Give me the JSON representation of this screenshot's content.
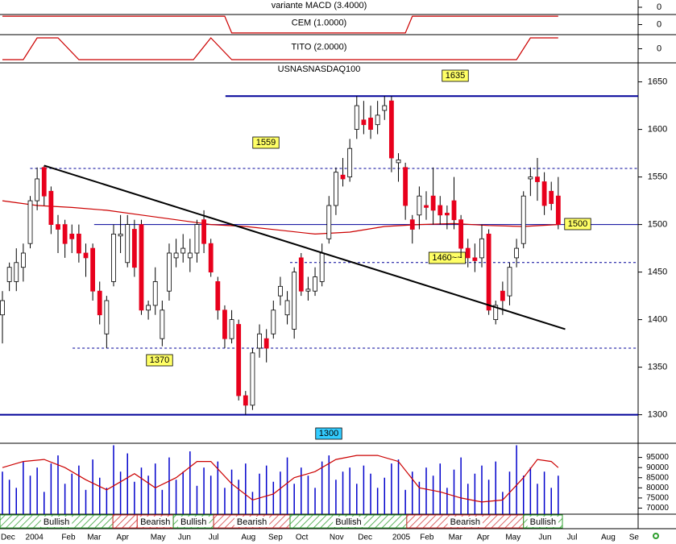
{
  "indicators": [
    {
      "label": "variante MACD (3.4000)",
      "yticks": [
        0
      ]
    },
    {
      "label": "CEM (1.0000)",
      "yticks": [
        0
      ],
      "ylim": [
        -1.2,
        1.2
      ],
      "x": [
        0,
        32,
        33,
        58,
        59,
        80
      ],
      "values": [
        1,
        1,
        -1,
        -1,
        1,
        1
      ],
      "color": "#cc0000"
    },
    {
      "label": "TITO (2.0000)",
      "yticks": [
        0
      ],
      "ylim": [
        -1.3,
        1.3
      ],
      "x": [
        0,
        3,
        5,
        8,
        11,
        27.5,
        30,
        33,
        74,
        76,
        80
      ],
      "values": [
        -1,
        -1,
        1,
        1,
        -1,
        -1,
        1,
        -1,
        -1,
        1,
        1
      ],
      "color": "#cc0000"
    }
  ],
  "chart_data": {
    "type": "candlestick",
    "title": "USNASNASDAQ100",
    "xlim": [
      -0.35,
      91.5
    ],
    "ylim": [
      1270,
      1670
    ],
    "yticks": [
      1300,
      1350,
      1400,
      1450,
      1500,
      1550,
      1600,
      1650
    ],
    "xticks": [
      {
        "value": 0.8,
        "label": "Dec"
      },
      {
        "value": 4.6,
        "label": "2004"
      },
      {
        "value": 9.5,
        "label": "Feb"
      },
      {
        "value": 13.2,
        "label": "Mar"
      },
      {
        "value": 17.3,
        "label": "Apr"
      },
      {
        "value": 22.4,
        "label": "May"
      },
      {
        "value": 26.2,
        "label": "Jun"
      },
      {
        "value": 30.4,
        "label": "Jul"
      },
      {
        "value": 35.4,
        "label": "Aug"
      },
      {
        "value": 39.3,
        "label": "Sep"
      },
      {
        "value": 43.1,
        "label": "Oct"
      },
      {
        "value": 48.1,
        "label": "Nov"
      },
      {
        "value": 52.2,
        "label": "Dec"
      },
      {
        "value": 57.4,
        "label": "2005"
      },
      {
        "value": 61.1,
        "label": "Feb"
      },
      {
        "value": 65.2,
        "label": "Mar"
      },
      {
        "value": 69.2,
        "label": "Apr"
      },
      {
        "value": 73.5,
        "label": "May"
      },
      {
        "value": 78.1,
        "label": "Jun"
      },
      {
        "value": 82,
        "label": "Jul"
      },
      {
        "value": 87.2,
        "label": "Aug"
      },
      {
        "value": 90.9,
        "label": "Se"
      }
    ],
    "up_color": "#ffffff",
    "down_color": "#e8001c",
    "open": [
      1405,
      1440,
      1440,
      1455,
      1480,
      1525,
      1560,
      1535,
      1500,
      1500,
      1490,
      1490,
      1470,
      1475,
      1430,
      1385,
      1440,
      1488,
      1460,
      1495,
      1500,
      1410,
      1415,
      1380,
      1430,
      1465,
      1470,
      1465,
      1470,
      1505,
      1480,
      1440,
      1410,
      1380,
      1395,
      1320,
      1310,
      1370,
      1380,
      1385,
      1425,
      1405,
      1390,
      1465,
      1430,
      1430,
      1440,
      1485,
      1520,
      1552,
      1550,
      1600,
      1610,
      1612,
      1605,
      1620,
      1630,
      1565,
      1560,
      1505,
      1510,
      1520,
      1530,
      1520,
      1512,
      1525,
      1505,
      1475,
      1465,
      1465,
      1490,
      1400,
      1430,
      1425,
      1465,
      1480,
      1548,
      1550,
      1545,
      1535,
      1530
    ],
    "high": [
      1430,
      1460,
      1475,
      1480,
      1530,
      1560,
      1562,
      1540,
      1510,
      1505,
      1500,
      1500,
      1480,
      1480,
      1440,
      1425,
      1500,
      1510,
      1510,
      1505,
      1505,
      1420,
      1455,
      1420,
      1480,
      1485,
      1490,
      1485,
      1505,
      1515,
      1485,
      1445,
      1415,
      1410,
      1400,
      1325,
      1370,
      1395,
      1390,
      1420,
      1445,
      1430,
      1455,
      1470,
      1445,
      1455,
      1480,
      1530,
      1560,
      1570,
      1590,
      1635,
      1630,
      1625,
      1630,
      1635,
      1635,
      1575,
      1565,
      1510,
      1540,
      1535,
      1560,
      1530,
      1520,
      1550,
      1510,
      1485,
      1480,
      1500,
      1495,
      1420,
      1440,
      1460,
      1485,
      1535,
      1560,
      1570,
      1555,
      1545,
      1550
    ],
    "low": [
      1375,
      1430,
      1430,
      1440,
      1475,
      1515,
      1520,
      1490,
      1470,
      1465,
      1470,
      1460,
      1445,
      1420,
      1395,
      1370,
      1435,
      1470,
      1455,
      1445,
      1405,
      1400,
      1405,
      1372,
      1420,
      1455,
      1460,
      1450,
      1460,
      1470,
      1445,
      1400,
      1370,
      1375,
      1315,
      1300,
      1305,
      1360,
      1355,
      1380,
      1415,
      1395,
      1380,
      1425,
      1420,
      1425,
      1435,
      1480,
      1510,
      1540,
      1545,
      1590,
      1595,
      1590,
      1595,
      1610,
      1555,
      1545,
      1505,
      1480,
      1495,
      1505,
      1500,
      1500,
      1495,
      1495,
      1465,
      1455,
      1450,
      1455,
      1405,
      1395,
      1405,
      1415,
      1455,
      1475,
      1530,
      1525,
      1510,
      1515,
      1495
    ],
    "close": [
      1420,
      1455,
      1460,
      1470,
      1525,
      1548,
      1530,
      1500,
      1495,
      1480,
      1485,
      1470,
      1465,
      1430,
      1405,
      1420,
      1490,
      1490,
      1500,
      1455,
      1410,
      1415,
      1440,
      1410,
      1470,
      1470,
      1475,
      1470,
      1500,
      1480,
      1450,
      1410,
      1380,
      1400,
      1320,
      1310,
      1365,
      1385,
      1370,
      1410,
      1435,
      1420,
      1450,
      1430,
      1432,
      1445,
      1470,
      1520,
      1555,
      1548,
      1580,
      1625,
      1605,
      1600,
      1615,
      1625,
      1570,
      1568,
      1520,
      1495,
      1530,
      1518,
      1515,
      1510,
      1510,
      1505,
      1475,
      1465,
      1462,
      1485,
      1410,
      1415,
      1420,
      1455,
      1475,
      1530,
      1550,
      1545,
      1520,
      1522,
      1500
    ],
    "moving_average": {
      "color": "#cc0000",
      "x": [
        0,
        5,
        10,
        15,
        20,
        25,
        30,
        35,
        40,
        45,
        50,
        55,
        60,
        65,
        70,
        75,
        80
      ],
      "values": [
        1525,
        1520,
        1518,
        1515,
        1510,
        1505,
        1500,
        1498,
        1494,
        1490,
        1492,
        1498,
        1500,
        1501,
        1499,
        1498,
        1500
      ]
    },
    "trendline": {
      "color": "#000000",
      "x": [
        6,
        81
      ],
      "values": [
        1562,
        1390
      ]
    },
    "levels": [
      {
        "value": 1635,
        "label": "1635",
        "from": 32.1,
        "color": "#000099",
        "style": "solid",
        "box": "#ffff66"
      },
      {
        "value": 1559,
        "label": "1559",
        "from": 4,
        "color": "#000099",
        "style": "dashed",
        "box": "#ffff66"
      },
      {
        "value": 1500,
        "label": "1500",
        "from": 13.2,
        "color": "#000099",
        "style": "thin",
        "box": "#ffff66"
      },
      {
        "value": 1460,
        "label": "1460~~",
        "from": 41.4,
        "color": "#000099",
        "style": "dashed",
        "box": "#ffff66"
      },
      {
        "value": 1370,
        "label": "1370",
        "from": 10.1,
        "color": "#000099",
        "style": "dashed",
        "box": "#ffff66"
      },
      {
        "value": 1300,
        "label": "1300",
        "from": -0.35,
        "color": "#000099",
        "style": "solid",
        "box": "#33ccff"
      }
    ],
    "volume": {
      "color": "#0000cc",
      "ylim": [
        67000,
        102000
      ],
      "yticks": [
        95000,
        90000,
        85000,
        80000,
        75000,
        70000
      ],
      "values": [
        88000,
        84000,
        80000,
        93000,
        86000,
        90000,
        78000,
        92000,
        96000,
        82000,
        87000,
        91000,
        79000,
        94000,
        85000,
        80000,
        101000,
        88000,
        97000,
        83000,
        90000,
        86000,
        92000,
        79000,
        95000,
        84000,
        88000,
        98000,
        81000,
        90000,
        86000,
        93000,
        80000,
        89000,
        84000,
        92000,
        78000,
        87000,
        91000,
        83000,
        88000,
        95000,
        82000,
        90000,
        86000,
        80000,
        93000,
        96000,
        84000,
        88000,
        90000,
        82000,
        91000,
        87000,
        80000,
        85000,
        92000,
        94000,
        79000,
        88000,
        83000,
        90000,
        86000,
        92000,
        80000,
        89000,
        95000,
        82000,
        87000,
        91000,
        84000,
        93000,
        78000,
        88000,
        101000,
        86000,
        90000,
        82000,
        88000,
        80000,
        86000
      ]
    },
    "oscillator": {
      "color": "#cc0000",
      "x": [
        0,
        3,
        6,
        9,
        12,
        15,
        17,
        19,
        22,
        25,
        28,
        30,
        33,
        36,
        39,
        42,
        45,
        48,
        51,
        54,
        57,
        60,
        63,
        66,
        69,
        72,
        75,
        77,
        79,
        80
      ],
      "values": [
        90000,
        93000,
        94000,
        90000,
        84000,
        79000,
        83000,
        87000,
        80000,
        85000,
        93000,
        93000,
        82000,
        74000,
        77000,
        85000,
        88000,
        94000,
        96000,
        96000,
        93000,
        80000,
        78000,
        75000,
        73000,
        74000,
        85000,
        94000,
        93000,
        90000
      ]
    },
    "signal_bands": {
      "edges": [
        -0.35,
        15.9,
        19.4,
        24.6,
        30.4,
        41.4,
        58.2,
        75.0,
        80.6
      ],
      "labels": [
        "Bullish",
        null,
        "Bearish",
        "Bullish",
        "Bearish",
        "Bullish",
        "Bearish",
        "Bullish"
      ],
      "colors": [
        "#2e9e2e",
        "#d03030",
        "#d03030",
        "#2e9e2e",
        "#d03030",
        "#2e9e2e",
        "#d03030",
        "#2e9e2e"
      ]
    }
  }
}
